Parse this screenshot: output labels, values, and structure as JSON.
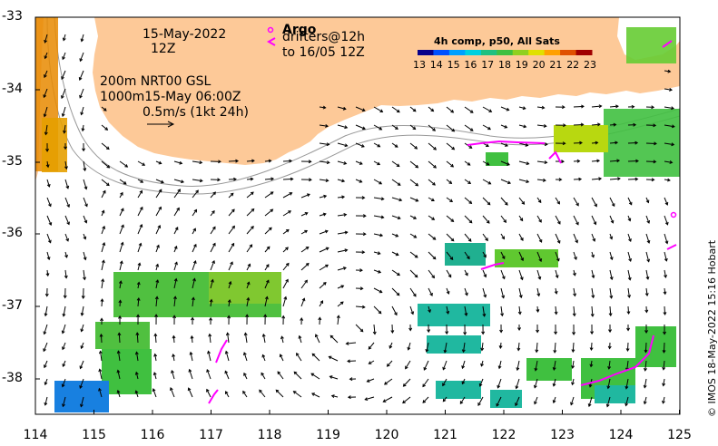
{
  "header": {
    "date": "15-May-2022",
    "time": "12Z"
  },
  "contours": {
    "line1": "200m  NRT00 GSL",
    "line2": "1000m15-May 06:00Z"
  },
  "scale": {
    "label": "0.5m/s (1kt 24h)"
  },
  "legend": {
    "argo_label": "Argo",
    "drifters_line1": "drifters@12h",
    "drifters_line2": "to 16/05 12Z",
    "marker_color": "#ff00ff"
  },
  "colorbar": {
    "title": "4h comp, p50, All Sats",
    "ticks": [
      "13",
      "14",
      "15",
      "16",
      "17",
      "18",
      "19",
      "20",
      "21",
      "22",
      "23"
    ],
    "colors": [
      "#08008a",
      "#0050ff",
      "#00a0ff",
      "#00d0e0",
      "#20c080",
      "#40c040",
      "#90d020",
      "#e0e000",
      "#ffa000",
      "#e05000",
      "#a00000"
    ]
  },
  "axes": {
    "lat_ticks": [
      "-33",
      "-34",
      "-35",
      "-36",
      "-37",
      "-38"
    ],
    "lon_ticks": [
      "114",
      "115",
      "116",
      "117",
      "118",
      "119",
      "120",
      "121",
      "122",
      "123",
      "124",
      "125"
    ]
  },
  "credit": "© IMOS 18-May-2022 15:16 Hobart",
  "colors": {
    "land": "#fdc998",
    "arrow": "#000000",
    "contour": "#999999"
  }
}
